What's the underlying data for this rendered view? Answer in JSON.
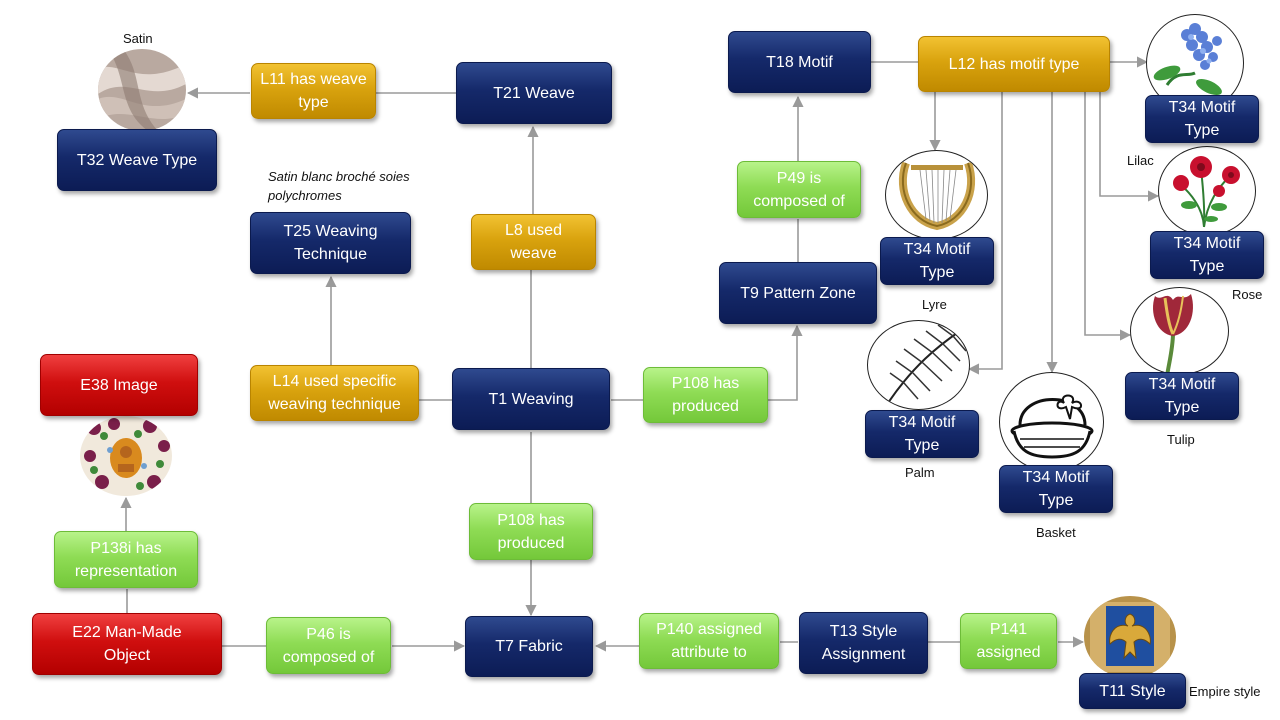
{
  "nodes": {
    "t32": "T32 Weave Type",
    "l11": "L11 has weave type",
    "t21": "T21 Weave",
    "t25": "T25 Weaving Technique",
    "l8": "L8 used weave",
    "l14": "L14 used specific weaving technique",
    "t1": "T1 Weaving",
    "p108a": "P108 has produced",
    "p108b": "P108 has produced",
    "t9": "T9 Pattern Zone",
    "p49": "P49 is composed of",
    "t18": "T18 Motif",
    "l12": "L12 has motif type",
    "m_lyre": "T34 Motif Type",
    "m_lilac": "T34 Motif Type",
    "m_rose": "T34 Motif Type",
    "m_palm": "T34 Motif Type",
    "m_basket": "T34 Motif Type",
    "m_tulip": "T34 Motif Type",
    "e38": "E38 Image",
    "p138i": "P138i has representation",
    "e22": "E22 Man-Made Object",
    "p46": "P46 is composed of",
    "t7": "T7 Fabric",
    "p140": "P140 assigned attribute to",
    "t13": "T13 Style Assignment",
    "p141": "P141 assigned",
    "t11": "T11 Style"
  },
  "captions": {
    "satin": "Satin",
    "satin_blanc": "Satin blanc broché soies polychromes",
    "lilac": "Lilac",
    "lyre": "Lyre",
    "rose": "Rose",
    "tulip": "Tulip",
    "palm": "Palm",
    "basket": "Basket",
    "empire": "Empire style"
  },
  "images": {
    "satin": "satin-fabric-image",
    "lilac": "lilac-flower-image",
    "lyre": "lyre-image",
    "rose": "rose-flower-image",
    "tulip": "tulip-flower-image",
    "palm": "palm-leaf-image",
    "basket": "basket-image",
    "fabric": "fabric-pattern-image",
    "eagle": "imperial-eagle-image"
  },
  "colors": {
    "entity": "#15296a",
    "property": "#d9a30e",
    "relation": "#8fdc55",
    "core": "#d00f0f",
    "connector": "#9a9a9a"
  }
}
